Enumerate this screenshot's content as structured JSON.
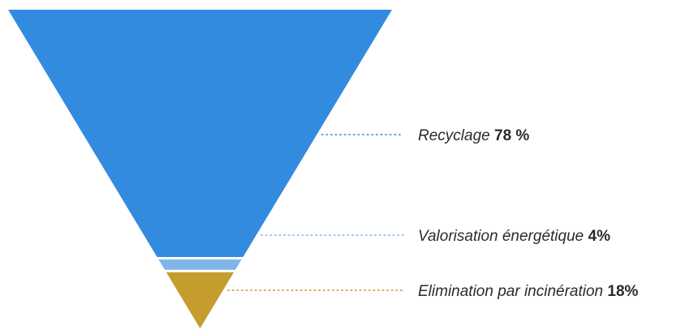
{
  "chart_data": {
    "type": "funnel",
    "title": "",
    "segments": [
      {
        "name": "Recyclage",
        "value": 78,
        "value_label": "78 %",
        "color": "#338bdf"
      },
      {
        "name": "Valorisation énergétique",
        "value": 4,
        "value_label": "4%",
        "color": "#7fb6ea"
      },
      {
        "name": "Elimination par incinération",
        "value": 18,
        "value_label": "18%",
        "color": "#c59c2e"
      }
    ],
    "legend": "right"
  }
}
